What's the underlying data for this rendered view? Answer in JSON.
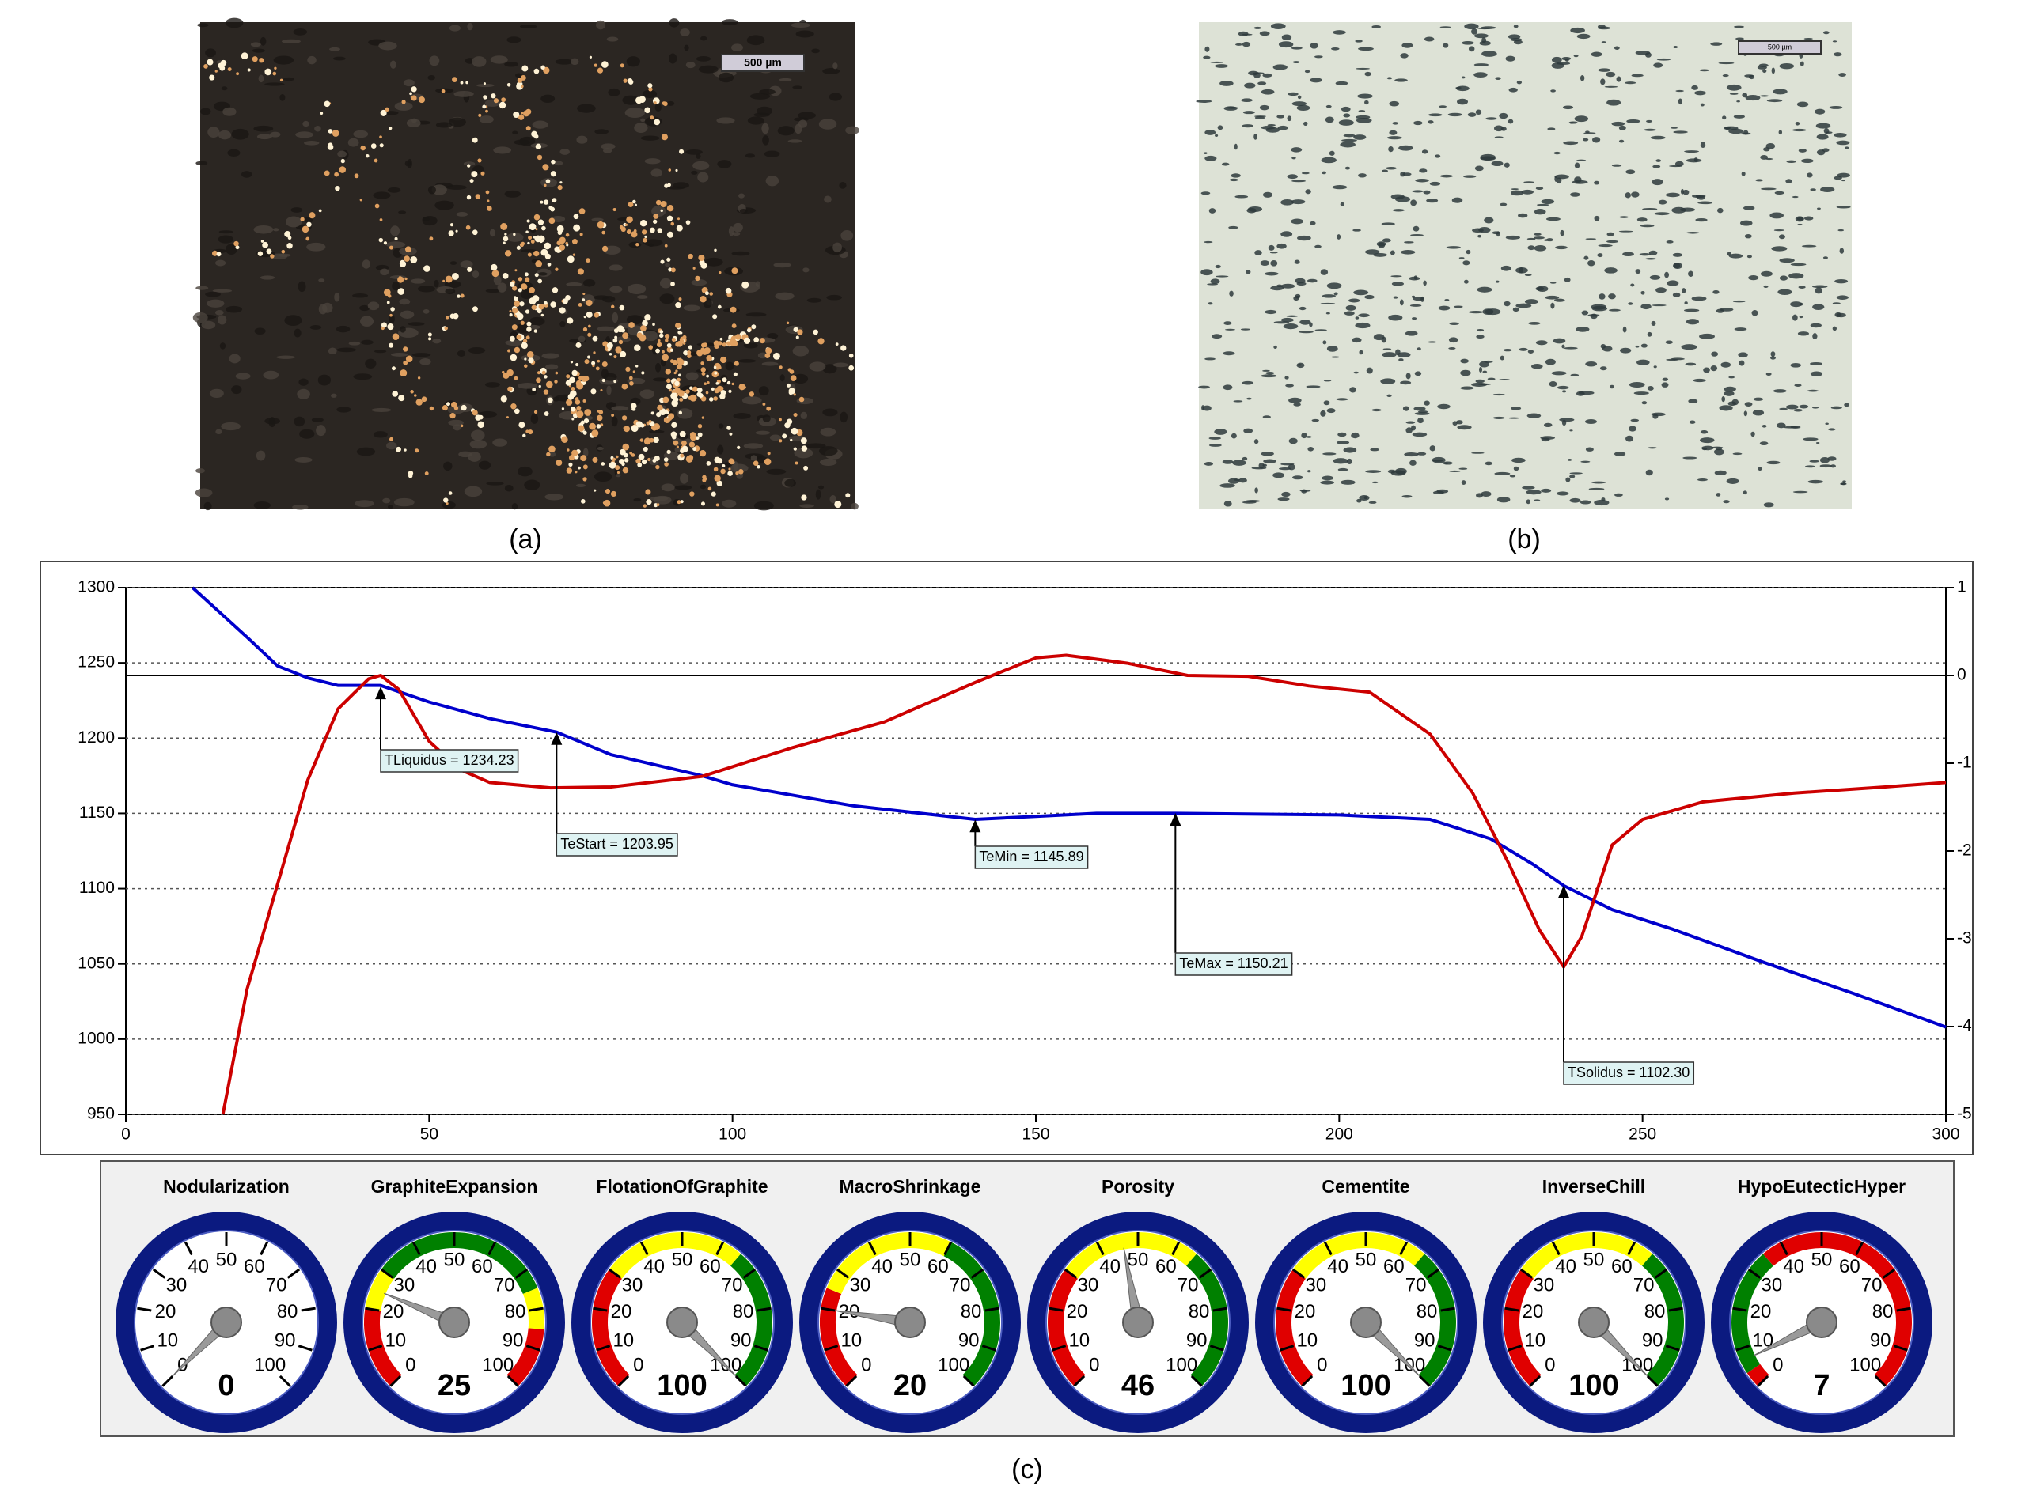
{
  "figure": {
    "labels": [
      "(a)",
      "(b)",
      "(c)"
    ],
    "scale_bars": [
      "500 µm",
      "500 µm"
    ]
  },
  "chart_data": [
    {
      "type": "line",
      "xlim": [
        0,
        300
      ],
      "xticks": [
        0,
        50,
        100,
        150,
        200,
        250,
        300
      ],
      "ylim": [
        950,
        1300
      ],
      "yticks": [
        950,
        1000,
        1050,
        1100,
        1150,
        1200,
        1250,
        1300
      ],
      "y2lim": [
        -5,
        1
      ],
      "y2ticks": [
        -5,
        -4,
        -3,
        -2,
        -1,
        0,
        1
      ],
      "grid": true,
      "y2_reference": 0,
      "series": [
        {
          "color": "#0000cc",
          "x": [
            11,
            20,
            25,
            30,
            35,
            42,
            50,
            60,
            71,
            80,
            95,
            100,
            120,
            140,
            150,
            160,
            173,
            200,
            215,
            225,
            232,
            237,
            245,
            255,
            270,
            285,
            300
          ],
          "values": [
            1300,
            1267,
            1248,
            1240,
            1235,
            1235,
            1224,
            1213,
            1204,
            1189,
            1175,
            1169,
            1155,
            1146,
            1148,
            1150,
            1150,
            1149,
            1146,
            1133,
            1116,
            1102,
            1086,
            1073,
            1051,
            1030,
            1008
          ]
        },
        {
          "color": "#cc0000",
          "axis": "y2",
          "x": [
            16,
            20,
            25,
            30,
            35,
            40,
            42,
            45,
            50,
            55,
            60,
            70,
            80,
            95,
            110,
            125,
            140,
            150,
            155,
            165,
            175,
            185,
            195,
            205,
            215,
            222,
            228,
            233,
            237,
            240,
            245,
            250,
            260,
            275,
            290,
            300
          ],
          "values": [
            -5,
            -3.57,
            -2.38,
            -1.19,
            -0.38,
            -0.04,
            0,
            -0.16,
            -0.75,
            -1.07,
            -1.22,
            -1.28,
            -1.27,
            -1.15,
            -0.82,
            -0.53,
            -0.08,
            0.2,
            0.23,
            0.14,
            0,
            -0.01,
            -0.12,
            -0.19,
            -0.67,
            -1.34,
            -2.15,
            -2.9,
            -3.32,
            -2.97,
            -1.93,
            -1.64,
            -1.44,
            -1.34,
            -1.27,
            -1.22
          ]
        }
      ],
      "annotations": [
        {
          "text": "TLiquidus = 1234.23",
          "x": 42,
          "y": 1234.23
        },
        {
          "text": "TeStart = 1203.95",
          "x": 71,
          "y": 1203.95
        },
        {
          "text": "TeMin = 1145.89",
          "x": 140,
          "y": 1145.89
        },
        {
          "text": "TeMax = 1150.21",
          "x": 173,
          "y": 1150.21
        },
        {
          "text": "TSolidus = 1102.30",
          "x": 237,
          "y": 1102.3
        }
      ]
    },
    {
      "type": "gauge",
      "range": [
        0,
        100
      ],
      "ticks": [
        0,
        10,
        20,
        30,
        40,
        50,
        60,
        70,
        80,
        90,
        100
      ],
      "categories": [
        "Nodularization",
        "GraphiteExpansion",
        "FlotationOfGraphite",
        "MacroShrinkage",
        "Porosity",
        "Cementite",
        "InverseChill",
        "HypoEutecticHyper"
      ],
      "values": [
        0,
        25,
        100,
        20,
        46,
        100,
        100,
        7
      ],
      "bands": [
        [],
        [
          {
            "from": 0,
            "to": 20,
            "color": "#e00000"
          },
          {
            "from": 20,
            "to": 30,
            "color": "#ffff00"
          },
          {
            "from": 30,
            "to": 75,
            "color": "#008000"
          },
          {
            "from": 75,
            "to": 85,
            "color": "#ffff00"
          },
          {
            "from": 85,
            "to": 100,
            "color": "#e00000"
          }
        ],
        [
          {
            "from": 0,
            "to": 30,
            "color": "#e00000"
          },
          {
            "from": 30,
            "to": 65,
            "color": "#ffff00"
          },
          {
            "from": 65,
            "to": 100,
            "color": "#008000"
          }
        ],
        [
          {
            "from": 0,
            "to": 25,
            "color": "#e00000"
          },
          {
            "from": 25,
            "to": 60,
            "color": "#ffff00"
          },
          {
            "from": 60,
            "to": 100,
            "color": "#008000"
          }
        ],
        [
          {
            "from": 0,
            "to": 30,
            "color": "#e00000"
          },
          {
            "from": 30,
            "to": 65,
            "color": "#ffff00"
          },
          {
            "from": 65,
            "to": 100,
            "color": "#008000"
          }
        ],
        [
          {
            "from": 0,
            "to": 30,
            "color": "#e00000"
          },
          {
            "from": 30,
            "to": 65,
            "color": "#ffff00"
          },
          {
            "from": 65,
            "to": 100,
            "color": "#008000"
          }
        ],
        [
          {
            "from": 0,
            "to": 30,
            "color": "#e00000"
          },
          {
            "from": 30,
            "to": 65,
            "color": "#ffff00"
          },
          {
            "from": 65,
            "to": 100,
            "color": "#008000"
          }
        ],
        [
          {
            "from": 0,
            "to": 4,
            "color": "#e00000"
          },
          {
            "from": 4,
            "to": 35,
            "color": "#008000"
          },
          {
            "from": 35,
            "to": 100,
            "color": "#e00000"
          }
        ]
      ]
    }
  ]
}
